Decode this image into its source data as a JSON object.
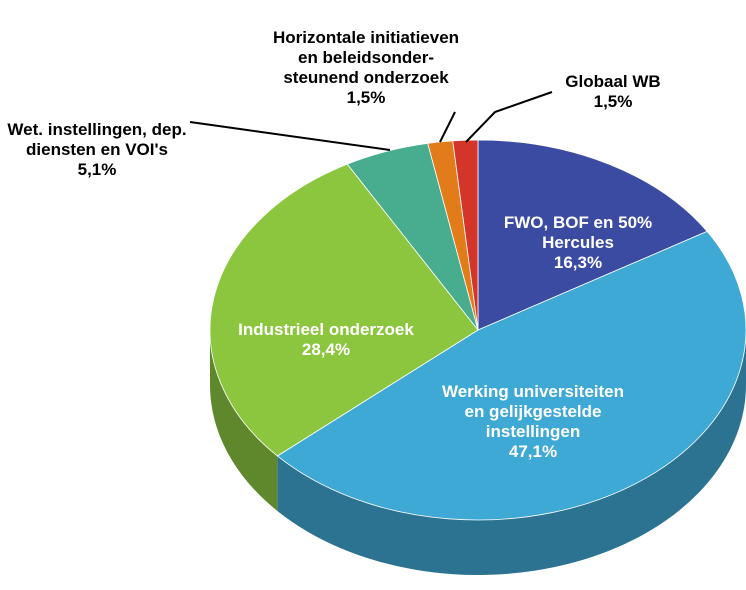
{
  "chart_data": {
    "type": "pie",
    "categories": [
      "FWO, BOF en 50% Hercules",
      "Werking universiteiten en gelijkgestelde instellingen",
      "Industrieel onderzoek",
      "Wet. instellingen, dep. diensten en VOI's",
      "Horizontale initiatieven en beleidsonder-steunend onderzoek",
      "Globaal WB"
    ],
    "values": [
      16.3,
      47.1,
      28.4,
      5.1,
      1.5,
      1.5
    ],
    "value_labels": [
      "16,3%",
      "47,1%",
      "28,4%",
      "5,1%",
      "1,5%",
      "1,5%"
    ],
    "colors": [
      "#3c4ba2",
      "#3fa9d5",
      "#8cc63f",
      "#47ad8e",
      "#e27c1b",
      "#d3352b"
    ]
  }
}
